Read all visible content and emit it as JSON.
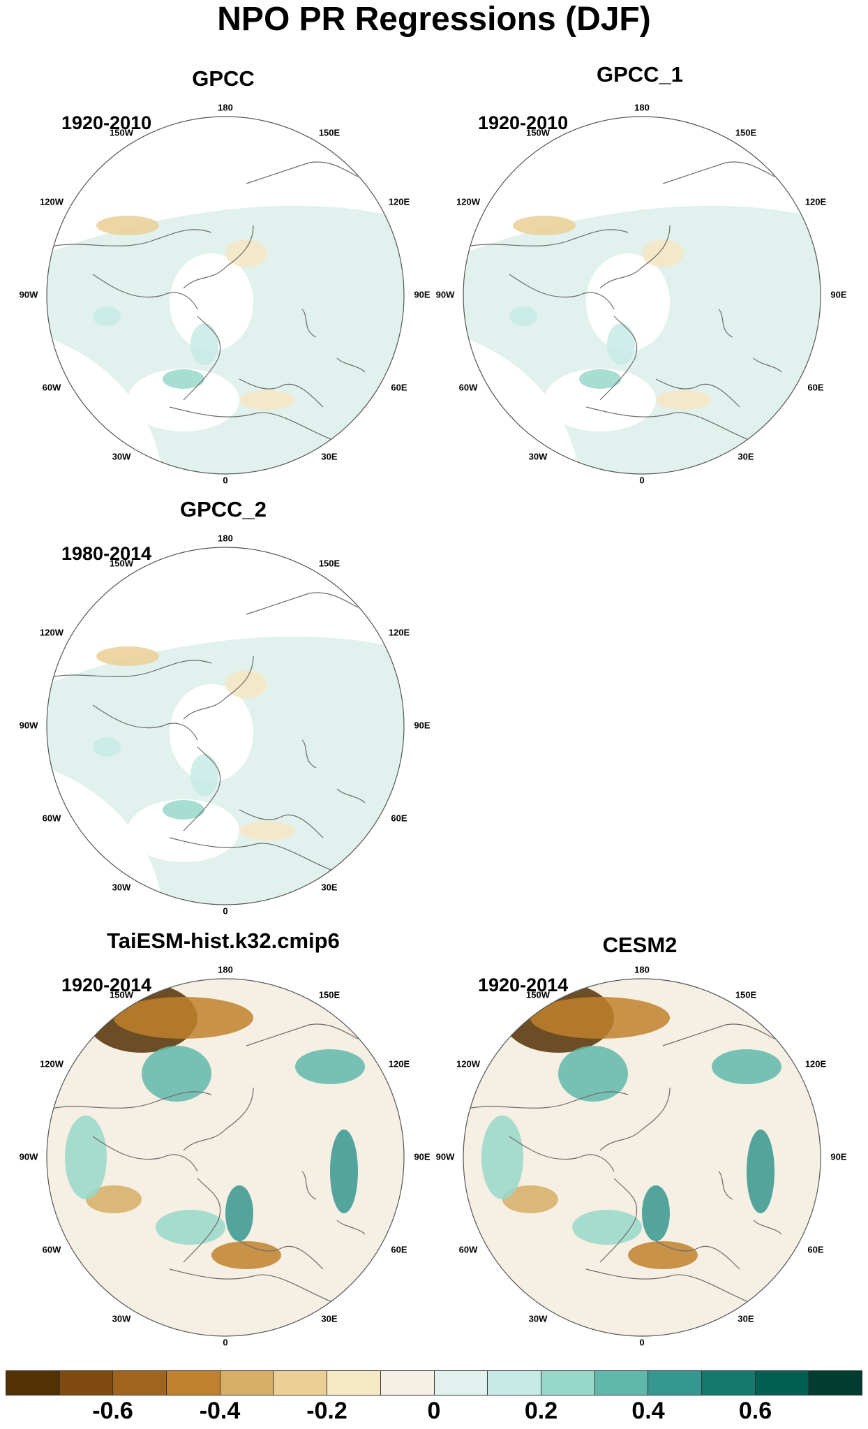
{
  "figure": {
    "title": "NPO PR Regressions (DJF)"
  },
  "longitude_labels": [
    "180",
    "150E",
    "120E",
    "90E",
    "60E",
    "30E",
    "0",
    "30W",
    "60W",
    "90W",
    "120W",
    "150W"
  ],
  "panels": [
    {
      "title": "GPCC",
      "period": "1920-2010",
      "type": "obs"
    },
    {
      "title": "GPCC_1",
      "period": "1920-2010",
      "type": "obs"
    },
    {
      "title": "GPCC_2",
      "period": "1980-2014",
      "type": "obs"
    },
    {
      "title": "TaiESM-hist.k32.cmip6",
      "period": "1920-2014",
      "type": "model"
    },
    {
      "title": "CESM2",
      "period": "1920-2014",
      "type": "model"
    }
  ],
  "colorbar": {
    "colors": [
      "#543005",
      "#7f4a10",
      "#a0641f",
      "#bf812d",
      "#d7ae65",
      "#ebcf94",
      "#f6e8c3",
      "#f5f0e3",
      "#e1f1ee",
      "#c7eae5",
      "#98d8ca",
      "#5fb8aa",
      "#35978f",
      "#16796e",
      "#015f52",
      "#003c30"
    ],
    "labels": [
      "-0.6",
      "-0.4",
      "-0.2",
      "0",
      "0.2",
      "0.4",
      "0.6"
    ]
  },
  "palette": {
    "land_outline": "#6b6b6b",
    "circle_outline": "#555555"
  }
}
